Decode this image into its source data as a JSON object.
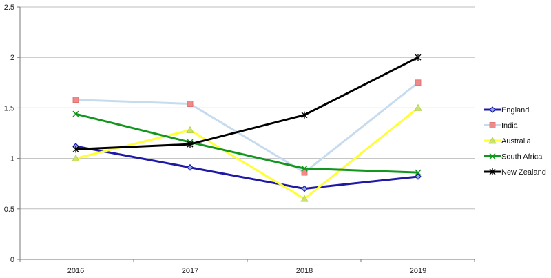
{
  "chart_data": {
    "type": "line",
    "categories": [
      "2016",
      "2017",
      "2018",
      "2019"
    ],
    "ylim": [
      0,
      2.5
    ],
    "yticks": [
      "0",
      "0.5",
      "1",
      "1.5",
      "2",
      "2.5"
    ],
    "grid": true,
    "legend": "right",
    "series": [
      {
        "name": "England",
        "values": [
          1.12,
          0.91,
          0.7,
          0.82
        ],
        "color": "#1f1aa6",
        "marker": "diamond"
      },
      {
        "name": "India",
        "values": [
          1.58,
          1.54,
          0.86,
          1.75
        ],
        "color": "#c7dbef",
        "marker": "square",
        "marker_color": "#f08a8a"
      },
      {
        "name": "Australia",
        "values": [
          1.0,
          1.28,
          0.6,
          1.5
        ],
        "color": "#ffff33",
        "marker": "triangle",
        "marker_color": "#c9e36b"
      },
      {
        "name": "South Africa",
        "values": [
          1.44,
          1.16,
          0.9,
          0.86
        ],
        "color": "#12961e",
        "marker": "x"
      },
      {
        "name": "New Zealand",
        "values": [
          1.09,
          1.14,
          1.43,
          2.0
        ],
        "color": "#000000",
        "marker": "star"
      }
    ]
  }
}
